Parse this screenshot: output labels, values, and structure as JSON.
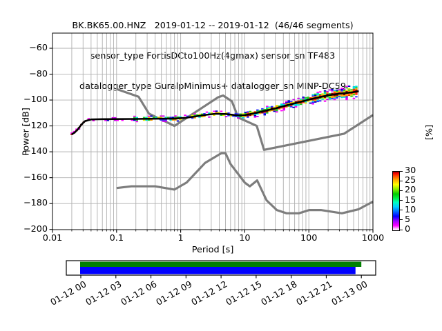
{
  "title": {
    "line1": "BK.BK65.00.HNZ   2019-01-12 -- 2019-01-12  (46/46 segments)",
    "line2": "sensor_type FortisDCto100Hz(4gmax) sensor_sn TF483",
    "line3": "datalogger_type GuralpMinimus+ datalogger_sn MINP-DC59"
  },
  "chart_data": {
    "type": "line",
    "description": "Probabilistic power spectral density (PPSD) of seismic channel BK.BK65.00.HNZ with Peterson new high/low noise model reference curves, 2D percentage histogram and data-coverage timeline",
    "x_axis": {
      "label": "Period [s]",
      "scale": "log",
      "lim": [
        0.01,
        1000
      ],
      "ticks": [
        {
          "v": 0.01,
          "t": "0.01"
        },
        {
          "v": 0.1,
          "t": "0.1"
        },
        {
          "v": 1,
          "t": "1"
        },
        {
          "v": 10,
          "t": "10"
        },
        {
          "v": 100,
          "t": "100"
        },
        {
          "v": 1000,
          "t": "1000"
        }
      ]
    },
    "y_axis": {
      "label": "Power [dB]",
      "lim": [
        -200,
        -50
      ],
      "ticks": [
        {
          "v": -60,
          "t": "−60"
        },
        {
          "v": -80,
          "t": "−80"
        },
        {
          "v": -100,
          "t": "−100"
        },
        {
          "v": -120,
          "t": "−120"
        },
        {
          "v": -140,
          "t": "−140"
        },
        {
          "v": -160,
          "t": "−160"
        },
        {
          "v": -180,
          "t": "−180"
        },
        {
          "v": -200,
          "t": "−200"
        }
      ]
    },
    "grid": {
      "on": true,
      "color": "#b0b0b0"
    },
    "series": [
      {
        "name": "noise_model_high",
        "label": "NHNM",
        "color": "#7d7d7d",
        "width": 3.2,
        "points": [
          [
            0.1,
            -91.5
          ],
          [
            0.22,
            -97.4
          ],
          [
            0.32,
            -110.5
          ],
          [
            0.8,
            -120
          ],
          [
            3.8,
            -98
          ],
          [
            4.6,
            -96.5
          ],
          [
            6.3,
            -101
          ],
          [
            7.9,
            -113.5
          ],
          [
            15.4,
            -120
          ],
          [
            20,
            -138.5
          ],
          [
            354.8,
            -126
          ],
          [
            1000,
            -111.6
          ]
        ]
      },
      {
        "name": "noise_model_low",
        "label": "NLNM",
        "color": "#7d7d7d",
        "width": 3.2,
        "points": [
          [
            0.1,
            -168
          ],
          [
            0.17,
            -166.7
          ],
          [
            0.4,
            -166.7
          ],
          [
            0.8,
            -169.2
          ],
          [
            1.24,
            -163.7
          ],
          [
            2.4,
            -148.6
          ],
          [
            4.3,
            -141.1
          ],
          [
            5,
            -141.1
          ],
          [
            6,
            -149.4
          ],
          [
            10,
            -163.8
          ],
          [
            12,
            -166.7
          ],
          [
            15.6,
            -162.1
          ],
          [
            21.9,
            -177.5
          ],
          [
            31.6,
            -185
          ],
          [
            45,
            -187.5
          ],
          [
            70,
            -187.5
          ],
          [
            101,
            -185
          ],
          [
            154,
            -185
          ],
          [
            328,
            -187.5
          ],
          [
            600,
            -184.4
          ],
          [
            1000,
            -178.5
          ]
        ]
      },
      {
        "name": "psd_mode",
        "label": "PSD mode",
        "color": "#000000",
        "width": 2.6,
        "points": [
          [
            0.02,
            -126.5
          ],
          [
            0.022,
            -125.2
          ],
          [
            0.025,
            -122.5
          ],
          [
            0.028,
            -119.2
          ],
          [
            0.032,
            -116.3
          ],
          [
            0.04,
            -115.0
          ],
          [
            0.06,
            -114.8
          ],
          [
            0.1,
            -114.7
          ],
          [
            0.2,
            -114.6
          ],
          [
            0.45,
            -114.4
          ],
          [
            0.8,
            -114.4
          ],
          [
            1.2,
            -113.7
          ],
          [
            1.8,
            -112.5
          ],
          [
            2.5,
            -111.4
          ],
          [
            3.5,
            -110.6
          ],
          [
            5.0,
            -110.8
          ],
          [
            6.5,
            -111.4
          ],
          [
            8.0,
            -111.9
          ],
          [
            10,
            -111.7
          ],
          [
            12,
            -110.9
          ],
          [
            15,
            -110.0
          ],
          [
            20,
            -108.5
          ],
          [
            30,
            -106.5
          ],
          [
            50,
            -103.5
          ],
          [
            70,
            -101.7
          ],
          [
            100,
            -99.7
          ],
          [
            140,
            -98.0
          ],
          [
            200,
            -96.4
          ],
          [
            280,
            -95.3
          ],
          [
            380,
            -94.6
          ],
          [
            480,
            -94.0
          ],
          [
            600,
            -93.2
          ]
        ]
      }
    ],
    "histogram": {
      "period_range": [
        0.02,
        600
      ],
      "step_octaves": 0.125,
      "db_bin": 1.0,
      "spread_halfwidth_db": [
        [
          0.02,
          1.2
        ],
        [
          0.1,
          1.4
        ],
        [
          1,
          1.8
        ],
        [
          3,
          2.2
        ],
        [
          8,
          2.5
        ],
        [
          20,
          2.8
        ],
        [
          50,
          3.1
        ],
        [
          100,
          3.4
        ],
        [
          200,
          3.9
        ],
        [
          350,
          4.4
        ],
        [
          600,
          5.0
        ]
      ],
      "palette_center_to_edge": [
        "#990000",
        "#ff2200",
        "#ff9900",
        "#e8e800",
        "#22cc22",
        "#00dddd",
        "#2b2bff",
        "#0000cc",
        "#cc00ee",
        "#ff00ff"
      ]
    },
    "colorbar": {
      "label": "[%]",
      "lim": [
        0,
        30
      ],
      "ticks": [
        {
          "v": 30,
          "t": "30"
        },
        {
          "v": 25,
          "t": "25"
        },
        {
          "v": 20,
          "t": "20"
        },
        {
          "v": 15,
          "t": "15"
        },
        {
          "v": 10,
          "t": "10"
        },
        {
          "v": 5,
          "t": "5"
        },
        {
          "v": 0,
          "t": "0"
        }
      ],
      "gradient_bottom_to_top": [
        {
          "pos": 0.0,
          "color": "#ffffff"
        },
        {
          "pos": 0.03,
          "color": "#ffbbff"
        },
        {
          "pos": 0.08,
          "color": "#ff00ff"
        },
        {
          "pos": 0.16,
          "color": "#9900ff"
        },
        {
          "pos": 0.24,
          "color": "#0000ff"
        },
        {
          "pos": 0.33,
          "color": "#0077ff"
        },
        {
          "pos": 0.4,
          "color": "#00ccff"
        },
        {
          "pos": 0.48,
          "color": "#00ffbb"
        },
        {
          "pos": 0.55,
          "color": "#00ee44"
        },
        {
          "pos": 0.62,
          "color": "#00cc00"
        },
        {
          "pos": 0.7,
          "color": "#88ee00"
        },
        {
          "pos": 0.78,
          "color": "#ffff00"
        },
        {
          "pos": 0.86,
          "color": "#ffaa00"
        },
        {
          "pos": 0.93,
          "color": "#ff4400"
        },
        {
          "pos": 0.975,
          "color": "#ee0000"
        },
        {
          "pos": 1.0,
          "color": "#8b0000"
        }
      ]
    },
    "timeline": {
      "tick_labels": [
        {
          "h": 0,
          "t": "01-12 00"
        },
        {
          "h": 3,
          "t": "01-12 03"
        },
        {
          "h": 6,
          "t": "01-12 06"
        },
        {
          "h": 9,
          "t": "01-12 09"
        },
        {
          "h": 12,
          "t": "01-12 12"
        },
        {
          "h": 15,
          "t": "01-12 15"
        },
        {
          "h": 18,
          "t": "01-12 18"
        },
        {
          "h": 21,
          "t": "01-12 21"
        },
        {
          "h": 24,
          "t": "01-13 00"
        }
      ],
      "bars": [
        {
          "name": "data-coverage",
          "color": "#008000",
          "start_hour": 0,
          "end_hour": 24,
          "row": "top"
        },
        {
          "name": "psd-segments",
          "color": "#0000ff",
          "start_hour": 0,
          "end_hour": 23.5,
          "row": "bottom"
        }
      ]
    }
  }
}
